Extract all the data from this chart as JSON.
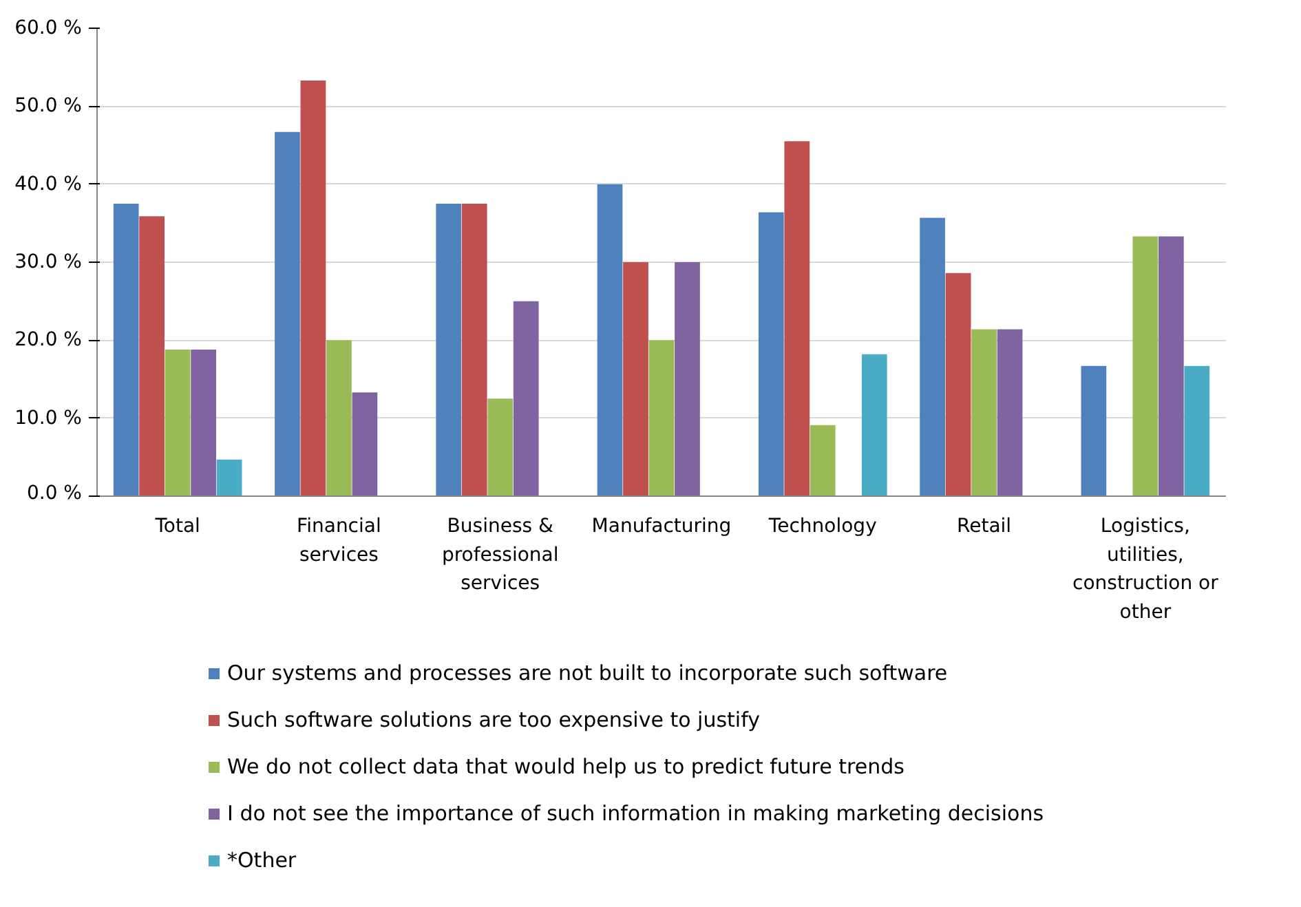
{
  "chart_data": {
    "type": "bar",
    "categories": [
      "Total",
      "Financial services",
      "Business & professional services",
      "Manufacturing",
      "Technology",
      "Retail",
      "Logistics, utilities, construction or other"
    ],
    "series": [
      {
        "name": "Our systems and processes are not built to incorporate such software",
        "color": "#4f81bd",
        "values": [
          37.5,
          46.7,
          37.5,
          40.0,
          36.4,
          35.7,
          16.7
        ]
      },
      {
        "name": "Such software solutions are too expensive to justify",
        "color": "#c0504d",
        "values": [
          35.9,
          53.3,
          37.5,
          30.0,
          45.5,
          28.6,
          null
        ]
      },
      {
        "name": "We do not collect data that would help us to predict future trends",
        "color": "#9bbb59",
        "values": [
          18.8,
          20.0,
          12.5,
          20.0,
          9.1,
          21.4,
          33.3
        ]
      },
      {
        "name": "I do not see the importance of such information in making marketing decisions",
        "color": "#8064a2",
        "values": [
          18.8,
          13.3,
          25.0,
          30.0,
          null,
          21.4,
          33.3
        ]
      },
      {
        "name": "*Other",
        "color": "#4bacc6",
        "values": [
          4.7,
          null,
          null,
          null,
          18.2,
          null,
          16.7
        ]
      }
    ],
    "ylim": [
      0,
      60
    ],
    "yticks": [
      {
        "value": 0,
        "label": "0.0 %"
      },
      {
        "value": 10,
        "label": "10.0 %"
      },
      {
        "value": 20,
        "label": "20.0 %"
      },
      {
        "value": 30,
        "label": "30.0 %"
      },
      {
        "value": 40,
        "label": "40.0 %"
      },
      {
        "value": 50,
        "label": "50.0 %"
      },
      {
        "value": 60,
        "label": "60.0 %"
      }
    ],
    "grid": "y",
    "legend": "bottom"
  }
}
